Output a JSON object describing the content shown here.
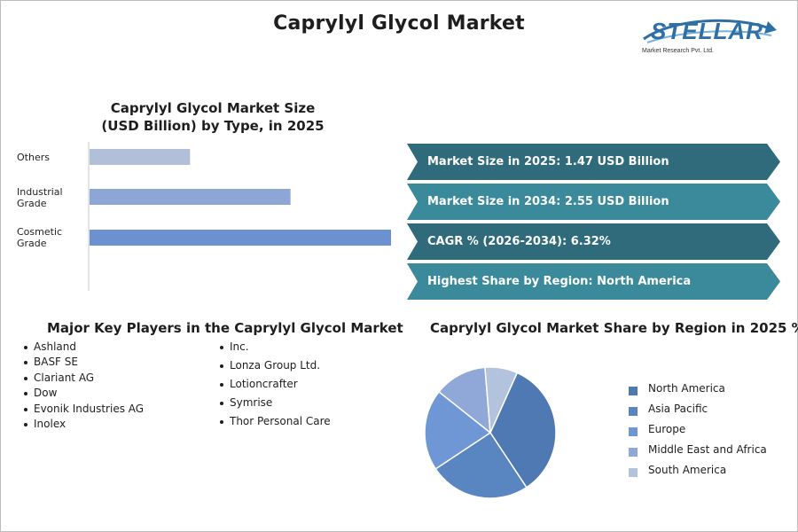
{
  "title": "Caprylyl Glycol Market",
  "logo": {
    "name": "STELLAR",
    "subtitle": "Market Research Pvt. Ltd."
  },
  "bar_section": {
    "title_line1": "Caprylyl Glycol Market Size",
    "title_line2": "(USD Billion) by Type, in 2025"
  },
  "stats": [
    "Market Size in 2025: 1.47 USD Billion",
    "Market Size in 2034: 2.55 USD Billion",
    "CAGR % (2026-2034): 6.32%",
    "Highest Share by Region: North America"
  ],
  "stat_colors": [
    "#2f6b7a",
    "#3a8a9c",
    "#2f6b7a",
    "#3a8a9c"
  ],
  "players": {
    "title": "Major Key Players in the Caprylyl Glycol Market",
    "col1": [
      "Ashland",
      "BASF SE",
      "Clariant AG",
      "Dow",
      "Evonik Industries AG",
      "Inolex"
    ],
    "col2": [
      "Inc.",
      "Lonza Group Ltd.",
      "Lotioncrafter",
      "Symrise",
      "Thor Personal Care"
    ]
  },
  "pie_section": {
    "title": "Caprylyl Glycol Market Share by Region in 2025 %"
  },
  "chart_data": [
    {
      "type": "bar",
      "orientation": "horizontal",
      "title": "Caprylyl Glycol Market Size (USD Billion) by Type, in 2025",
      "categories": [
        "Others",
        "Industrial Grade",
        "Cosmetic Grade"
      ],
      "category_lines": [
        [
          "Others"
        ],
        [
          "Industrial",
          "Grade"
        ],
        [
          "Cosmetic",
          "Grade"
        ]
      ],
      "values": [
        0.25,
        0.5,
        0.75
      ],
      "xlim": [
        0,
        0.75
      ],
      "colors": [
        "#b2bfd9",
        "#8ea6d6",
        "#6b91d1"
      ],
      "grid": false
    },
    {
      "type": "pie",
      "title": "Caprylyl Glycol Market Share by Region in 2025 %",
      "categories": [
        "North America",
        "Asia Pacific",
        "Europe",
        "Middle East and Africa",
        "South America"
      ],
      "values": [
        34,
        25,
        20,
        13,
        8
      ],
      "colors": [
        "#4e79b3",
        "#5985c1",
        "#6f97d6",
        "#8fa8d8",
        "#b3c2dd"
      ],
      "legend": "right"
    }
  ]
}
